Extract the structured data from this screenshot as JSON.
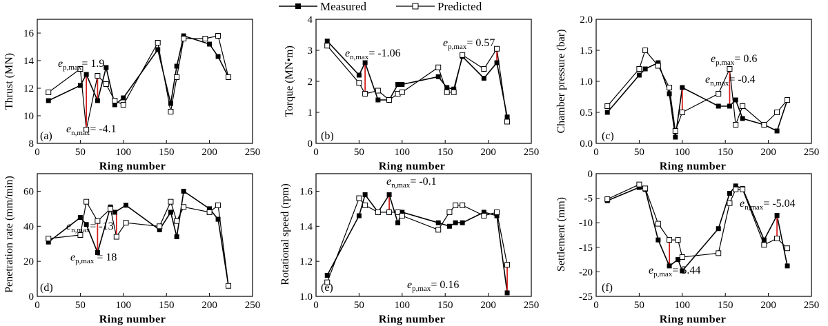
{
  "legend": {
    "measured": "Measured",
    "predicted": "Predicted"
  },
  "colors": {
    "series": "#000000",
    "error_bar": "#d62020"
  },
  "chart_data": [
    {
      "type": "line",
      "panel": "(a)",
      "xlabel": "Ring number",
      "ylabel": "Thrust (MN)",
      "xlim": [
        0,
        250
      ],
      "ylim": [
        8,
        17
      ],
      "xticks": [
        0,
        50,
        100,
        150,
        200,
        250
      ],
      "yticks": [
        8,
        10,
        12,
        14,
        16
      ],
      "series": [
        {
          "name": "Measured",
          "x": [
            13,
            50,
            57,
            70,
            80,
            90,
            100,
            140,
            155,
            162,
            170,
            200,
            210,
            222
          ],
          "y": [
            11.1,
            12.2,
            13.0,
            11.1,
            13.5,
            10.8,
            11.3,
            14.8,
            10.9,
            13.6,
            15.8,
            15.2,
            14.3,
            12.8
          ]
        },
        {
          "name": "Predicted",
          "x": [
            13,
            50,
            57,
            70,
            80,
            90,
            100,
            140,
            155,
            162,
            170,
            195,
            210,
            222
          ],
          "y": [
            11.7,
            13.4,
            9.0,
            12.9,
            12.3,
            11.1,
            10.8,
            15.3,
            10.3,
            12.8,
            15.6,
            15.6,
            15.8,
            12.8
          ]
        }
      ],
      "error_bars": [
        {
          "x": 57,
          "measured": 13.0,
          "predicted": 9.0
        },
        {
          "x": 70,
          "measured": 11.1,
          "predicted": 12.9
        }
      ],
      "annotations": [
        {
          "base": "e",
          "sub": "p,max",
          "text": "= 1.9"
        },
        {
          "base": "e",
          "sub": "n,max",
          "text": "= -4.1"
        }
      ]
    },
    {
      "type": "line",
      "panel": "(b)",
      "xlabel": "Ring number",
      "ylabel": "Torque (MN•m)",
      "xlim": [
        0,
        250
      ],
      "ylim": [
        0,
        4
      ],
      "xticks": [
        0,
        50,
        100,
        150,
        200,
        250
      ],
      "yticks": [
        0,
        1,
        2,
        3,
        4
      ],
      "series": [
        {
          "name": "Measured",
          "x": [
            13,
            50,
            57,
            72,
            85,
            95,
            100,
            142,
            152,
            160,
            170,
            195,
            210,
            222
          ],
          "y": [
            3.3,
            2.2,
            2.6,
            1.4,
            1.4,
            1.9,
            1.9,
            2.15,
            1.8,
            1.75,
            2.8,
            2.1,
            2.6,
            0.85
          ]
        },
        {
          "name": "Predicted",
          "x": [
            13,
            50,
            57,
            72,
            85,
            95,
            100,
            142,
            152,
            160,
            170,
            195,
            210,
            222
          ],
          "y": [
            3.15,
            1.95,
            1.6,
            1.7,
            1.4,
            1.6,
            1.65,
            2.45,
            1.65,
            1.65,
            2.85,
            2.4,
            3.05,
            0.7
          ]
        }
      ],
      "error_bars": [
        {
          "x": 57,
          "measured": 2.6,
          "predicted": 1.6
        },
        {
          "x": 210,
          "measured": 2.6,
          "predicted": 3.05
        }
      ],
      "annotations": [
        {
          "base": "e",
          "sub": "n,max",
          "text": "= -1.06"
        },
        {
          "base": "e",
          "sub": "p,max",
          "text": "= 0.57"
        }
      ]
    },
    {
      "type": "line",
      "panel": "(c)",
      "xlabel": "Ring number",
      "ylabel": "Chamber pressure (bar)",
      "xlim": [
        0,
        250
      ],
      "ylim": [
        0.0,
        2.0
      ],
      "xticks": [
        0,
        50,
        100,
        150,
        200,
        250
      ],
      "yticks": [
        0.0,
        0.5,
        1.0,
        1.5,
        2.0
      ],
      "series": [
        {
          "name": "Measured",
          "x": [
            13,
            50,
            57,
            72,
            85,
            92,
            100,
            142,
            155,
            162,
            170,
            195,
            210,
            222
          ],
          "y": [
            0.5,
            1.1,
            1.2,
            1.3,
            0.8,
            0.1,
            0.9,
            0.6,
            0.6,
            0.7,
            0.4,
            0.3,
            0.2,
            0.7
          ]
        },
        {
          "name": "Predicted",
          "x": [
            13,
            50,
            57,
            72,
            85,
            92,
            100,
            142,
            155,
            162,
            170,
            195,
            210,
            222
          ],
          "y": [
            0.6,
            1.2,
            1.5,
            1.25,
            0.9,
            0.2,
            0.5,
            0.8,
            1.2,
            0.3,
            0.6,
            0.3,
            0.5,
            0.7
          ]
        }
      ],
      "error_bars": [
        {
          "x": 100,
          "measured": 0.9,
          "predicted": 0.5
        },
        {
          "x": 155,
          "measured": 0.6,
          "predicted": 1.2
        }
      ],
      "annotations": [
        {
          "base": "e",
          "sub": "p,max",
          "text": "= 0.6"
        },
        {
          "base": "e",
          "sub": "n,max",
          "text": "= -0.4"
        }
      ]
    },
    {
      "type": "line",
      "panel": "(d)",
      "xlabel": "Ring number",
      "ylabel": "Penetration rate (mm/min)",
      "xlim": [
        0,
        250
      ],
      "ylim": [
        0,
        70
      ],
      "xticks": [
        0,
        50,
        100,
        150,
        200,
        250
      ],
      "yticks": [
        0,
        20,
        40,
        60
      ],
      "series": [
        {
          "name": "Measured",
          "x": [
            13,
            50,
            57,
            70,
            85,
            90,
            103,
            142,
            155,
            162,
            170,
            200,
            210,
            222
          ],
          "y": [
            31,
            45,
            41,
            25,
            51,
            48,
            52,
            38,
            48,
            34,
            60,
            50,
            44,
            6
          ]
        },
        {
          "name": "Predicted",
          "x": [
            13,
            50,
            57,
            70,
            85,
            92,
            103,
            142,
            155,
            162,
            170,
            200,
            210,
            222
          ],
          "y": [
            33,
            35,
            54,
            43,
            50,
            34,
            42,
            40,
            54,
            43,
            51,
            48,
            52,
            6
          ]
        }
      ],
      "error_bars": [
        {
          "x": 70,
          "measured": 25,
          "predicted": 43
        },
        {
          "x": 92,
          "measured": 47,
          "predicted": 34
        }
      ],
      "annotations": [
        {
          "base": "e",
          "sub": "n,max",
          "text": "= -13"
        },
        {
          "base": "e",
          "sub": "p,max",
          "text": "18"
        }
      ]
    },
    {
      "type": "line",
      "panel": "(e)",
      "xlabel": "Ring number",
      "ylabel": "Rotational speed (rpm)",
      "xlim": [
        0,
        250
      ],
      "ylim": [
        1.0,
        1.7
      ],
      "xticks": [
        0,
        50,
        100,
        150,
        200,
        250
      ],
      "yticks": [
        1.0,
        1.2,
        1.4,
        1.6
      ],
      "series": [
        {
          "name": "Measured",
          "x": [
            13,
            50,
            57,
            72,
            85,
            95,
            100,
            142,
            155,
            162,
            170,
            195,
            210,
            222
          ],
          "y": [
            1.12,
            1.46,
            1.58,
            1.48,
            1.58,
            1.42,
            1.48,
            1.42,
            1.4,
            1.42,
            1.42,
            1.48,
            1.46,
            1.02
          ]
        },
        {
          "name": "Predicted",
          "x": [
            13,
            50,
            57,
            72,
            85,
            95,
            100,
            142,
            155,
            162,
            170,
            195,
            210,
            222
          ],
          "y": [
            1.08,
            1.56,
            1.52,
            1.48,
            1.48,
            1.48,
            1.46,
            1.38,
            1.48,
            1.52,
            1.52,
            1.46,
            1.48,
            1.18
          ]
        }
      ],
      "error_bars": [
        {
          "x": 85,
          "measured": 1.58,
          "predicted": 1.48
        },
        {
          "x": 222,
          "measured": 1.02,
          "predicted": 1.18
        }
      ],
      "annotations": [
        {
          "base": "e",
          "sub": "n,max",
          "text": "= -0.1"
        },
        {
          "base": "e",
          "sub": "p,max",
          "text": "= 0.16"
        }
      ]
    },
    {
      "type": "line",
      "panel": "(f)",
      "xlabel": "Ring number",
      "ylabel": "Settlement (mm)",
      "xlim": [
        0,
        250
      ],
      "ylim": [
        -25,
        0
      ],
      "xticks": [
        0,
        50,
        100,
        150,
        200,
        250
      ],
      "yticks": [
        -25,
        -20,
        -15,
        -10,
        -5,
        0
      ],
      "series": [
        {
          "name": "Measured",
          "x": [
            13,
            50,
            57,
            72,
            85,
            95,
            100,
            142,
            155,
            162,
            170,
            195,
            210,
            222
          ],
          "y": [
            -5.5,
            -2.8,
            -3.2,
            -13.5,
            -18.8,
            -17.5,
            -19.8,
            -11.2,
            -4.0,
            -2.5,
            -3.0,
            -13.5,
            -8.5,
            -18.8
          ]
        },
        {
          "name": "Predicted",
          "x": [
            13,
            50,
            57,
            72,
            85,
            95,
            100,
            142,
            155,
            162,
            170,
            195,
            210,
            222
          ],
          "y": [
            -5.2,
            -2.2,
            -3.0,
            -10.2,
            -13.5,
            -13.5,
            -17.0,
            -16.2,
            -6.0,
            -3.2,
            -3.2,
            -14.5,
            -13.2,
            -15.2
          ]
        }
      ],
      "error_bars": [
        {
          "x": 85,
          "measured": -18.8,
          "predicted": -13.5
        },
        {
          "x": 210,
          "measured": -8.5,
          "predicted": -13.2
        }
      ],
      "annotations": [
        {
          "base": "e",
          "sub": "n,max",
          "text": "= -5.04"
        },
        {
          "base": "e",
          "sub": "p,max",
          "text": "= 5.44"
        }
      ]
    }
  ]
}
